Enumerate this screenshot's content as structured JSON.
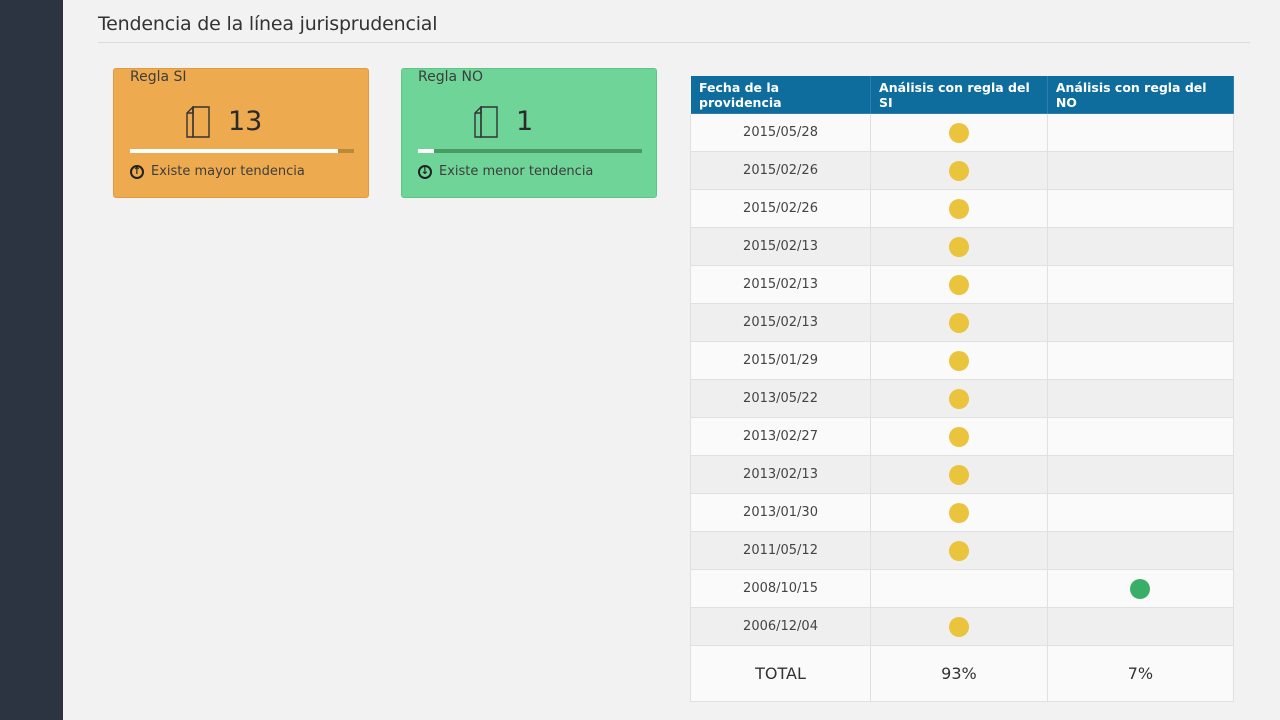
{
  "section": {
    "title": "Tendencia de la línea jurisprudencial"
  },
  "cards": {
    "si": {
      "label": "Regla SI",
      "value": "13",
      "footer": "Existe mayor tendencia",
      "progress": 0.93,
      "color": "#eeaa4e",
      "icon": "documents-icon",
      "footer_icon": "arrow-up-circle-icon"
    },
    "no": {
      "label": "Regla NO",
      "value": "1",
      "footer": "Existe menor tendencia",
      "progress": 0.07,
      "color": "#6fd498",
      "icon": "documents-icon",
      "footer_icon": "arrow-down-circle-icon"
    }
  },
  "table": {
    "headers": [
      "Fecha de la providencia",
      "Análisis con regla del SI",
      "Análisis con regla del NO"
    ],
    "rows": [
      {
        "date": "2015/05/28",
        "rule": "si"
      },
      {
        "date": "2015/02/26",
        "rule": "si"
      },
      {
        "date": "2015/02/26",
        "rule": "si"
      },
      {
        "date": "2015/02/13",
        "rule": "si"
      },
      {
        "date": "2015/02/13",
        "rule": "si"
      },
      {
        "date": "2015/02/13",
        "rule": "si"
      },
      {
        "date": "2015/01/29",
        "rule": "si"
      },
      {
        "date": "2013/05/22",
        "rule": "si"
      },
      {
        "date": "2013/02/27",
        "rule": "si"
      },
      {
        "date": "2013/02/13",
        "rule": "si"
      },
      {
        "date": "2013/01/30",
        "rule": "si"
      },
      {
        "date": "2011/05/12",
        "rule": "si"
      },
      {
        "date": "2008/10/15",
        "rule": "no"
      },
      {
        "date": "2006/12/04",
        "rule": "si"
      }
    ],
    "total": {
      "label": "TOTAL",
      "si": "93%",
      "no": "7%"
    },
    "colors": {
      "header": "#0e6d9d",
      "si_dot": "#e9c43c",
      "no_dot": "#3aae67"
    }
  }
}
